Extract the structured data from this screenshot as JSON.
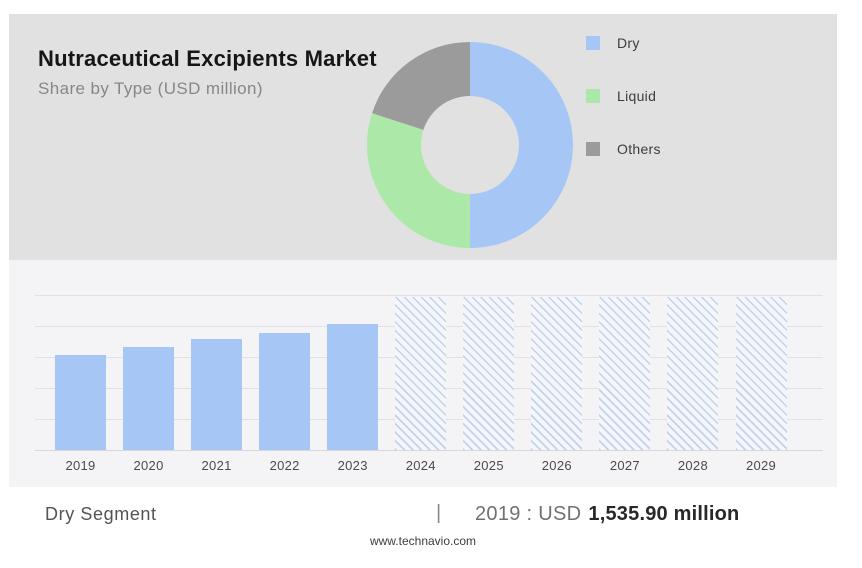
{
  "header": {
    "title": "Nutraceutical Excipients Market",
    "subtitle": "Share by Type (USD million)"
  },
  "chart_data": [
    {
      "type": "pie",
      "subtype": "donut",
      "legend_position": "right",
      "start_angle_deg": 0,
      "direction": "clockwise",
      "slices": [
        {
          "label": "Dry",
          "percent": 50,
          "color": "#a6c7f6"
        },
        {
          "label": "Liquid",
          "percent": 30,
          "color": "#ace8a8"
        },
        {
          "label": "Others",
          "percent": 20,
          "color": "#9b9b9b"
        }
      ],
      "note": "No numeric labels shown on slices; percentages estimated from arc angles"
    },
    {
      "type": "bar",
      "categories": [
        "2019",
        "2020",
        "2021",
        "2022",
        "2023",
        "2024",
        "2025",
        "2026",
        "2027",
        "2028",
        "2029"
      ],
      "values": [
        1535.9,
        1655,
        1790,
        1890,
        2040,
        2460,
        2460,
        2460,
        2460,
        2460,
        2460
      ],
      "hatched": [
        false,
        false,
        false,
        false,
        false,
        true,
        true,
        true,
        true,
        true,
        true
      ],
      "title": "",
      "xlabel": "",
      "ylabel": "",
      "ylim": [
        0,
        2500
      ],
      "grid_step": 500,
      "y_tick_labels_shown": false,
      "note": "2024-2029 drawn as unlabeled diagonal-hatched forecast bars; heights estimated from gridlines. 2019 Dry segment = USD 1,535.90 million (stated in footer)."
    }
  ],
  "footer": {
    "segment_label": "Dry Segment",
    "separator": "|",
    "value_prefix": "2019 : USD",
    "value_bold": "1,535.90 million",
    "watermark": "www.technavio.com"
  },
  "colors": {
    "top_panel_bg": "#e1e1e1",
    "chart_panel_bg": "#f4f4f6",
    "grid_line": "#e1e1e4",
    "bar_blue": "#a6c7f6",
    "donut_green": "#ace8a8",
    "donut_gray": "#9b9b9b",
    "hatch_line": "#c5d1e8",
    "title_text": "#161616",
    "subtitle_text": "#878787"
  }
}
